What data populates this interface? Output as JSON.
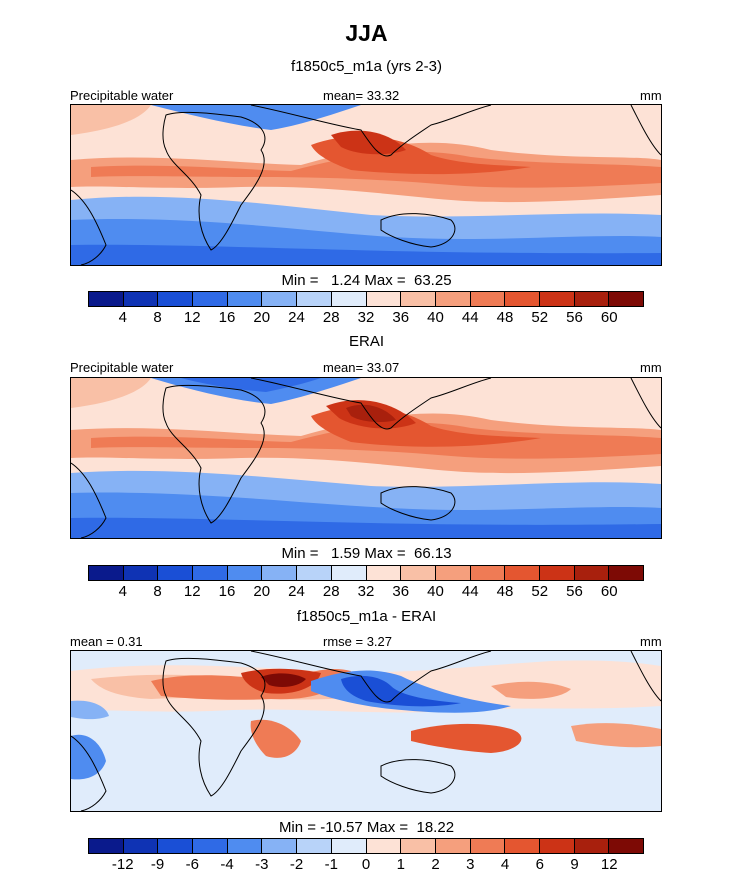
{
  "figure": {
    "title": "JJA"
  },
  "panels": [
    {
      "title": "f1850c5_m1a (yrs 2-3)",
      "left_label": "Precipitable water",
      "center_label": "mean=  33.32",
      "right_label": "mm",
      "minmax_label": "Min =   1.24 Max =  63.25",
      "colorbar_ticks": [
        "4",
        "8",
        "12",
        "16",
        "20",
        "24",
        "28",
        "32",
        "36",
        "40",
        "44",
        "48",
        "52",
        "56",
        "60"
      ]
    },
    {
      "title": "ERAI",
      "left_label": "Precipitable water",
      "center_label": "mean=  33.07",
      "right_label": "mm",
      "minmax_label": "Min =   1.59 Max =  66.13",
      "colorbar_ticks": [
        "4",
        "8",
        "12",
        "16",
        "20",
        "24",
        "28",
        "32",
        "36",
        "40",
        "44",
        "48",
        "52",
        "56",
        "60"
      ]
    },
    {
      "title": "f1850c5_m1a - ERAI",
      "left_label": "mean =   0.31",
      "center_label": "rmse =   3.27",
      "right_label": "mm",
      "minmax_label": "Min = -10.57 Max =  18.22",
      "colorbar_ticks": [
        "-12",
        "-9",
        "-6",
        "-4",
        "-3",
        "-2",
        "-1",
        "0",
        "1",
        "2",
        "3",
        "4",
        "6",
        "9",
        "12"
      ]
    }
  ],
  "chart_data": [
    {
      "type": "heatmap",
      "title": "f1850c5_m1a (yrs 2-3)",
      "variable": "Precipitable water",
      "units": "mm",
      "mean": 33.32,
      "min": 1.24,
      "max": 63.25,
      "levels": [
        4,
        8,
        12,
        16,
        20,
        24,
        28,
        32,
        36,
        40,
        44,
        48,
        52,
        56,
        60
      ],
      "colors": [
        "#0a1a8c",
        "#0f33b4",
        "#1a4fd6",
        "#2f6ae6",
        "#4f8cf0",
        "#86b2f5",
        "#b8d3f9",
        "#e0ecfb",
        "#fde2d6",
        "#f9c0a6",
        "#f59f7d",
        "#ef7b55",
        "#e45630",
        "#cc3316",
        "#a8200d",
        "#7d0a05"
      ]
    },
    {
      "type": "heatmap",
      "title": "ERAI",
      "variable": "Precipitable water",
      "units": "mm",
      "mean": 33.07,
      "min": 1.59,
      "max": 66.13,
      "levels": [
        4,
        8,
        12,
        16,
        20,
        24,
        28,
        32,
        36,
        40,
        44,
        48,
        52,
        56,
        60
      ],
      "colors": [
        "#0a1a8c",
        "#0f33b4",
        "#1a4fd6",
        "#2f6ae6",
        "#4f8cf0",
        "#86b2f5",
        "#b8d3f9",
        "#e0ecfb",
        "#fde2d6",
        "#f9c0a6",
        "#f59f7d",
        "#ef7b55",
        "#e45630",
        "#cc3316",
        "#a8200d",
        "#7d0a05"
      ]
    },
    {
      "type": "heatmap",
      "title": "f1850c5_m1a - ERAI",
      "units": "mm",
      "mean": 0.31,
      "rmse": 3.27,
      "min": -10.57,
      "max": 18.22,
      "levels": [
        -12,
        -9,
        -6,
        -4,
        -3,
        -2,
        -1,
        0,
        1,
        2,
        3,
        4,
        6,
        9,
        12
      ],
      "colors": [
        "#0a1a8c",
        "#0f33b4",
        "#1a4fd6",
        "#2f6ae6",
        "#4f8cf0",
        "#86b2f5",
        "#b8d3f9",
        "#e0ecfb",
        "#fde2d6",
        "#f9c0a6",
        "#f59f7d",
        "#ef7b55",
        "#e45630",
        "#cc3316",
        "#a8200d",
        "#7d0a05"
      ]
    }
  ]
}
